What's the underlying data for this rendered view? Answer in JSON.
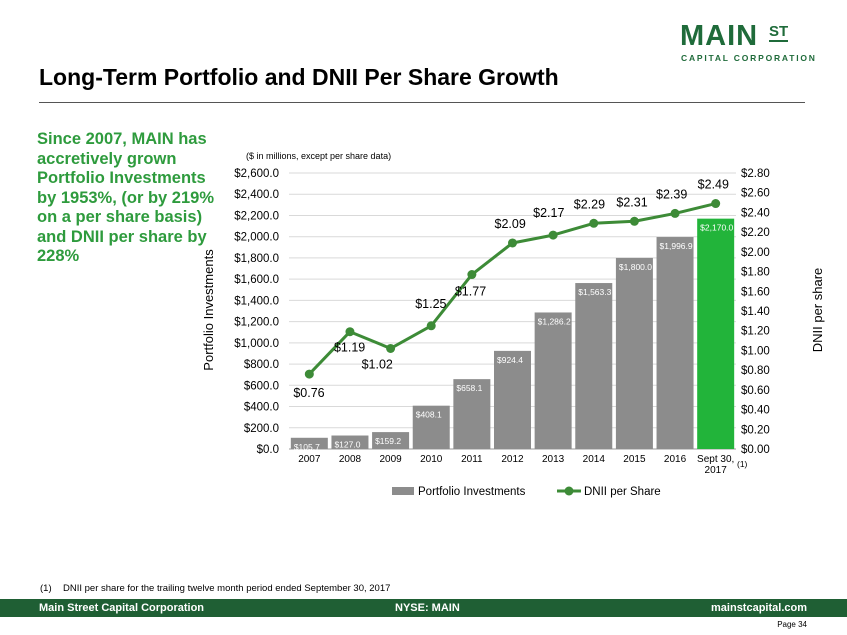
{
  "logo": {
    "main": "MAIN",
    "st": "ST",
    "sub": "CAPITAL CORPORATION"
  },
  "title": "Long-Term Portfolio and DNII Per Share Growth",
  "side_text": "Since 2007, MAIN has accretively grown Portfolio Investments by 1953%, (or by 219% on a per share basis) and DNII per share by 228%",
  "units_note": "($ in millions, except per share data)",
  "footnote": {
    "num": "(1)",
    "text": "DNII per share for the trailing twelve month period ended September 30, 2017"
  },
  "footer": {
    "left": "Main Street Capital Corporation",
    "middle": "NYSE: MAIN",
    "right": "mainstcapital.com"
  },
  "page_label": "Page  34",
  "colors": {
    "bar": "#8c8c8c",
    "bar_highlight": "#22b43a",
    "line": "#3d8b37",
    "brand": "#1f5f34",
    "accent_text": "#2e9b3d"
  },
  "chart_data": {
    "type": "bar",
    "categories": [
      "2007",
      "2008",
      "2009",
      "2010",
      "2011",
      "2012",
      "2013",
      "2014",
      "2015",
      "2016",
      "Sept 30, 2017"
    ],
    "category_lines": [
      [
        "2007"
      ],
      [
        "2008"
      ],
      [
        "2009"
      ],
      [
        "2010"
      ],
      [
        "2011"
      ],
      [
        "2012"
      ],
      [
        "2013"
      ],
      [
        "2014"
      ],
      [
        "2015"
      ],
      [
        "2016"
      ],
      [
        "Sept 30,",
        "2017"
      ]
    ],
    "series": [
      {
        "name": "Portfolio Investments",
        "type": "bar",
        "axis": "left",
        "values": [
          105.7,
          127.0,
          159.2,
          408.1,
          658.1,
          924.4,
          1286.2,
          1563.3,
          1800.0,
          1996.9,
          2170.0
        ],
        "labels": [
          "$105.7",
          "$127.0",
          "$159.2",
          "$408.1",
          "$658.1",
          "$924.4",
          "$1,286.2",
          "$1,563.3",
          "$1,800.0",
          "$1,996.9",
          "$2,170.0"
        ],
        "highlight_index": 10
      },
      {
        "name": "DNII per Share",
        "type": "line",
        "axis": "right",
        "values": [
          0.76,
          1.19,
          1.02,
          1.25,
          1.77,
          2.09,
          2.17,
          2.29,
          2.31,
          2.39,
          2.49
        ],
        "labels": [
          "$0.76",
          "$1.19",
          "$1.02",
          "$1.25",
          "$1.77",
          "$2.09",
          "$2.17",
          "$2.29",
          "$2.31",
          "$2.39",
          "$2.49"
        ]
      }
    ],
    "ylabel": "Portfolio Investments",
    "y2label": "DNII per share",
    "ylim": [
      0,
      2600
    ],
    "y2lim": [
      0,
      2.8
    ],
    "yticks": [
      "$0.0",
      "$200.0",
      "$400.0",
      "$600.0",
      "$800.0",
      "$1,000.0",
      "$1,200.0",
      "$1,400.0",
      "$1,600.0",
      "$1,800.0",
      "$2,000.0",
      "$2,200.0",
      "$2,400.0",
      "$2,600.0"
    ],
    "y2ticks": [
      "$0.00",
      "$0.20",
      "$0.40",
      "$0.60",
      "$0.80",
      "$1.00",
      "$1.20",
      "$1.40",
      "$1.60",
      "$1.80",
      "$2.00",
      "$2.20",
      "$2.40",
      "$2.60",
      "$2.80"
    ],
    "category_note": "(1)",
    "grid": true,
    "legend_position": "bottom"
  }
}
